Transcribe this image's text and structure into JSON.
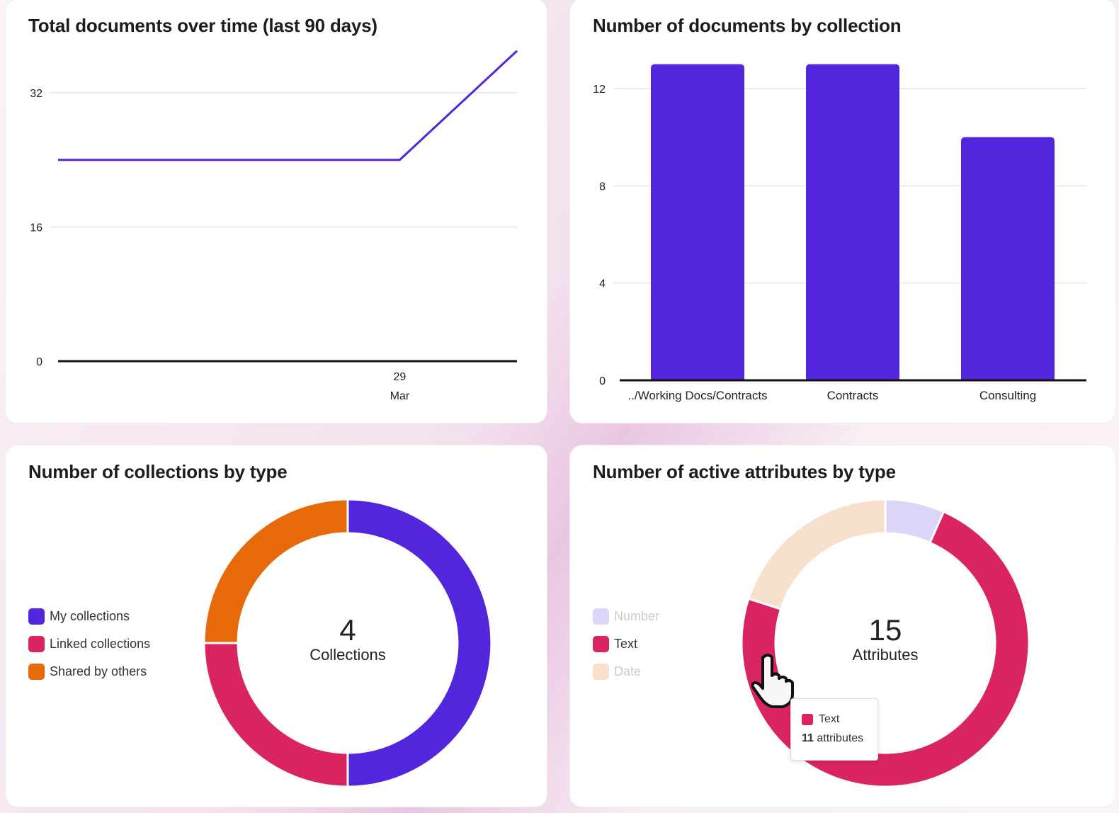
{
  "colors": {
    "purple": "#5326dd",
    "pink": "#d9245f",
    "orange": "#e8690a",
    "number": "#ddd5f7",
    "date": "#f8e1cc",
    "grid": "#e6e6e6",
    "axis": "#111"
  },
  "chart_data": [
    {
      "type": "line",
      "title": "Total documents over time (last 90 days)",
      "xlabel": "",
      "ylabel": "",
      "ylim": [
        0,
        40
      ],
      "yticks": [
        0,
        16,
        32
      ],
      "xlim": [
        0,
        90
      ],
      "xticks": [
        {
          "x": 67,
          "label": [
            "29",
            "Mar"
          ]
        }
      ],
      "series": [
        {
          "name": "Total documents",
          "points": [
            {
              "x": 0,
              "y": 24
            },
            {
              "x": 67,
              "y": 24
            },
            {
              "x": 90,
              "y": 37
            }
          ]
        }
      ]
    },
    {
      "type": "bar",
      "title": "Number of documents by collection",
      "xlabel": "",
      "ylabel": "",
      "ylim": [
        0,
        13
      ],
      "yticks": [
        0,
        4,
        8,
        12
      ],
      "categories": [
        "../Working Docs/Contracts",
        "Contracts",
        "Consulting"
      ],
      "values": [
        13,
        13,
        10
      ]
    },
    {
      "type": "pie",
      "title": "Number of collections by type",
      "center_value": "4",
      "center_label": "Collections",
      "categories": [
        "My collections",
        "Linked collections",
        "Shared by others"
      ],
      "values": [
        2,
        1,
        1
      ],
      "legend": "left"
    },
    {
      "type": "pie",
      "title": "Number of active attributes by type",
      "center_value": "15",
      "center_label": "Attributes",
      "categories": [
        "Number",
        "Text",
        "Date"
      ],
      "values": [
        1,
        11,
        3
      ],
      "legend": "left",
      "tooltip": {
        "label": "Text",
        "count_bold": "11",
        "count_suffix": " attributes"
      }
    }
  ]
}
